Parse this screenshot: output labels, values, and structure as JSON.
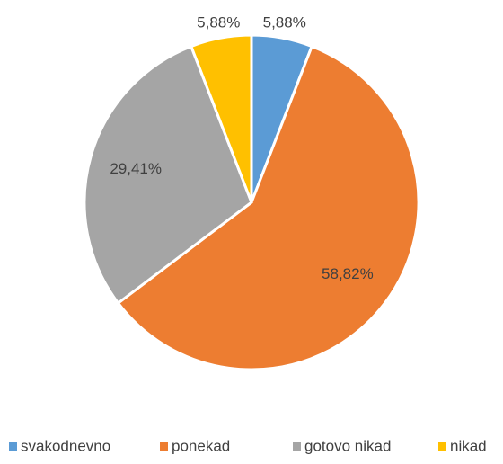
{
  "chart_data": {
    "type": "pie",
    "categories": [
      "svakodnevno",
      "ponekad",
      "gotovo nikad",
      "nikad"
    ],
    "values": [
      5.88,
      58.82,
      29.41,
      5.88
    ],
    "value_labels": [
      "5,88%",
      "58,82%",
      "29,41%",
      "5,88%"
    ],
    "colors": [
      "#5b9bd5",
      "#ed7d31",
      "#a5a5a5",
      "#ffc000"
    ],
    "legend": "bottom"
  }
}
